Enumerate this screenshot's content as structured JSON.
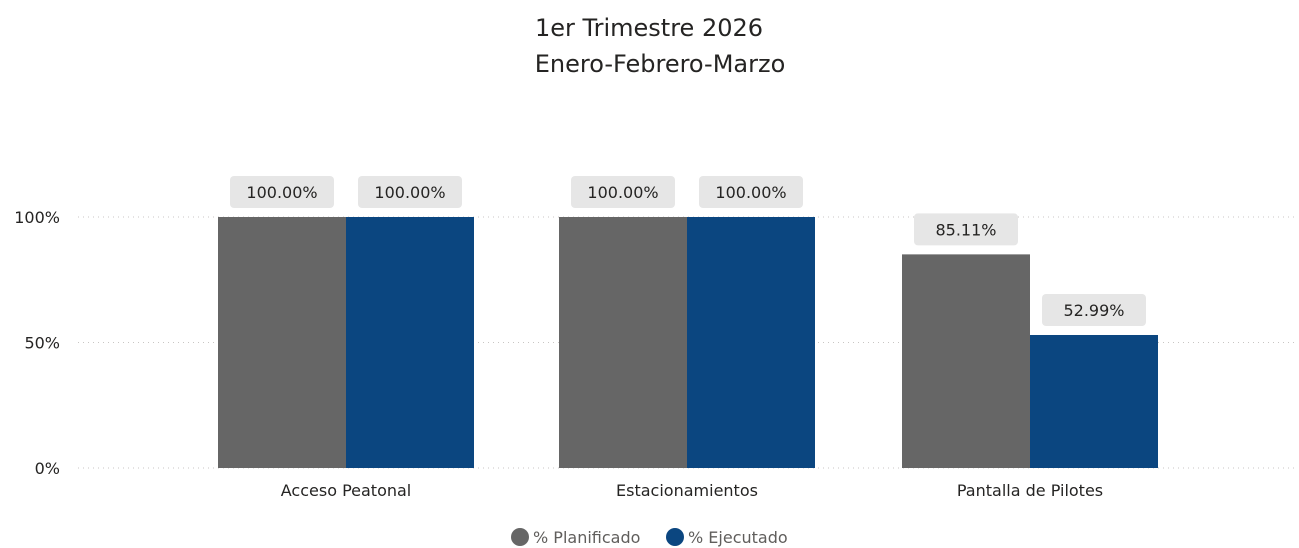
{
  "chart_data": {
    "type": "bar",
    "title": "1er Trimestre 2026",
    "subtitle": "Enero-Febrero-Marzo",
    "categories": [
      "Acceso Peatonal",
      "Estacionamientos",
      "Pantalla de Pilotes"
    ],
    "series": [
      {
        "name": "% Planificado",
        "color": "#666666",
        "values": [
          100.0,
          100.0,
          85.11
        ],
        "labels": [
          "100.00%",
          "100.00%",
          "85.11%"
        ]
      },
      {
        "name": "% Ejecutado",
        "color": "#0b4680",
        "values": [
          100.0,
          100.0,
          52.99
        ],
        "labels": [
          "100.00%",
          "100.00%",
          "52.99%"
        ]
      }
    ],
    "y_ticks": [
      {
        "value": 0,
        "label": "0%"
      },
      {
        "value": 50,
        "label": "50%"
      },
      {
        "value": 100,
        "label": "100%"
      }
    ],
    "ylim": [
      0,
      100
    ],
    "grid": true,
    "legend_position": "bottom-center",
    "data_label_background": "#e6e6e6"
  }
}
